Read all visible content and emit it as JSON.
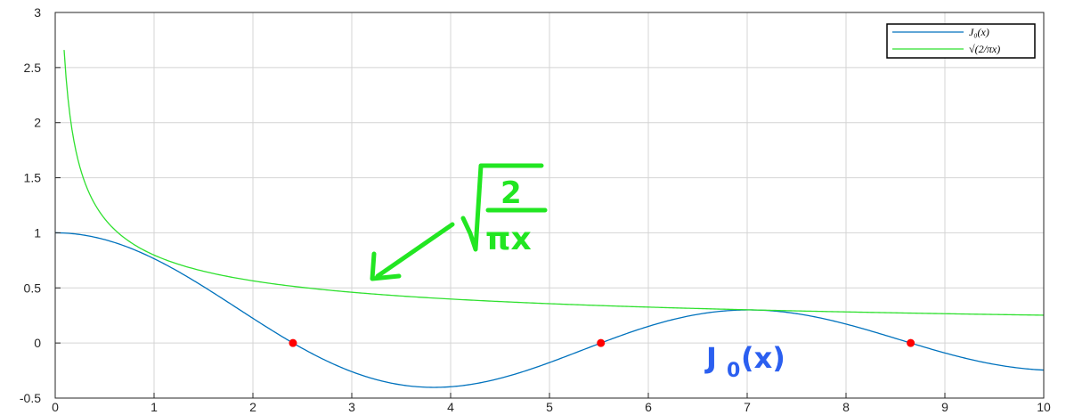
{
  "chart_data": {
    "type": "line",
    "xlim": [
      0,
      10
    ],
    "ylim": [
      -0.5,
      3
    ],
    "x_ticks": [
      0,
      1,
      2,
      3,
      4,
      5,
      6,
      7,
      8,
      9,
      10
    ],
    "y_ticks": [
      -0.5,
      0,
      0.5,
      1,
      1.5,
      2,
      2.5,
      3
    ],
    "x_tick_labels": [
      "0",
      "1",
      "2",
      "3",
      "4",
      "5",
      "6",
      "7",
      "8",
      "9",
      "10"
    ],
    "y_tick_labels": [
      "-0.5",
      "0",
      "0.5",
      "1",
      "1.5",
      "2",
      "2.5",
      "3"
    ],
    "grid": true,
    "legend_position": "top-right",
    "series": [
      {
        "name": "J0(x)",
        "color": "#0072bd",
        "x_range": [
          0,
          10
        ],
        "x": [
          0,
          0.5,
          1,
          1.5,
          2,
          2.405,
          3,
          3.5,
          3.83,
          4.5,
          5,
          5.52,
          6,
          6.5,
          7.02,
          7.5,
          8,
          8.654,
          9,
          9.5,
          10
        ],
        "y": [
          1.0,
          0.938,
          0.765,
          0.512,
          0.224,
          0.0,
          -0.26,
          -0.38,
          -0.403,
          -0.321,
          -0.178,
          0.0,
          0.151,
          0.26,
          0.3,
          0.266,
          0.172,
          0.0,
          -0.09,
          -0.194,
          -0.246
        ]
      },
      {
        "name": "sqrt(2/(pi x))",
        "color": "#2fe02f",
        "x_range": [
          0.09,
          10
        ],
        "x": [
          0.09,
          0.2,
          0.5,
          1,
          2,
          3,
          4,
          5,
          6,
          7,
          8,
          9,
          10
        ],
        "y": [
          2.66,
          1.784,
          1.128,
          0.798,
          0.564,
          0.461,
          0.399,
          0.357,
          0.326,
          0.302,
          0.282,
          0.266,
          0.252
        ]
      }
    ],
    "zeros": [
      {
        "x": 2.405,
        "y": 0
      },
      {
        "x": 5.52,
        "y": 0
      },
      {
        "x": 8.654,
        "y": 0
      }
    ],
    "legend": {
      "entries": [
        {
          "label": "J₀(x)",
          "color": "#0072bd"
        },
        {
          "label": "√(2/πx)",
          "color": "#2fe02f"
        }
      ]
    },
    "annotations": {
      "sqrt_label": {
        "numerator": "2",
        "denominator": "πx"
      },
      "bessel_label": {
        "text": "J",
        "subscript": "0",
        "suffix": "(x)"
      }
    }
  }
}
